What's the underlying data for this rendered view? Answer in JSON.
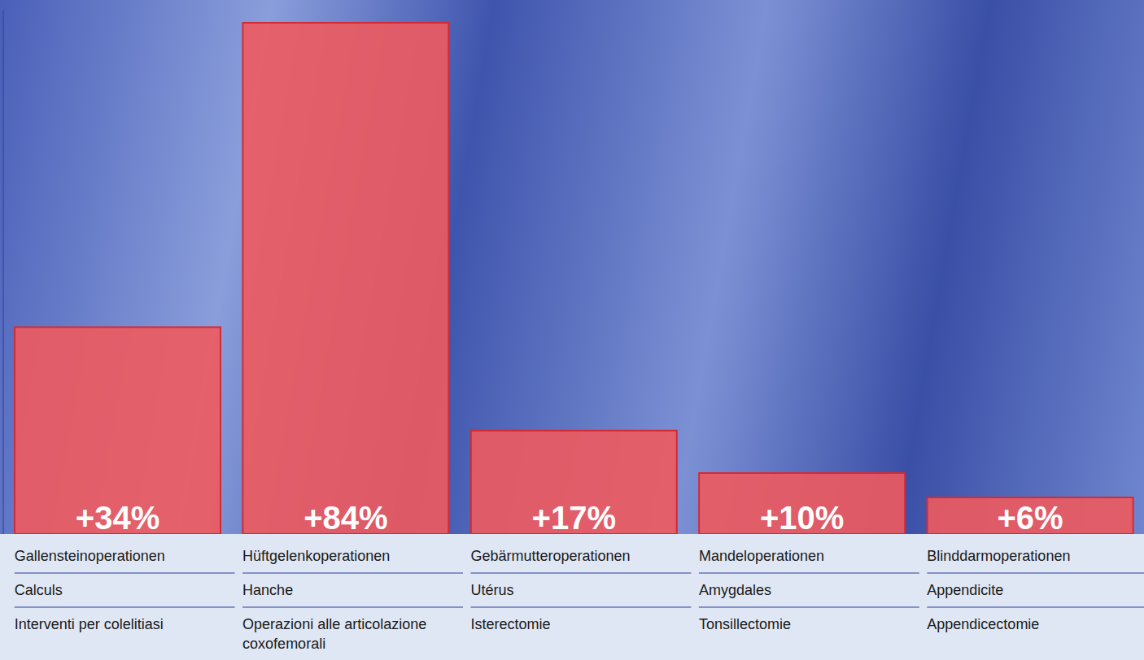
{
  "chart_data": {
    "type": "bar",
    "categories": [
      [
        "Gallensteinoperationen",
        "Calculs",
        "Interventi per colelitiasi"
      ],
      [
        "Hüftgelenkoperationen",
        "Hanche",
        "Operazioni alle articolazione coxofemorali"
      ],
      [
        "Gebärmutteroperationen",
        "Utérus",
        "Isterectomie"
      ],
      [
        "Mandeloperationen",
        "Amygdales",
        "Tonsillectomie"
      ],
      [
        "Blinddarmoperationen",
        "Appendicite",
        "Appendicectomie"
      ]
    ],
    "values": [
      34,
      84,
      17,
      10,
      6
    ],
    "value_labels": [
      "+34%",
      "+84%",
      "+17%",
      "+10%",
      "+6%"
    ],
    "data_labels": true,
    "color": "#ee5a5e",
    "ylim": [
      0,
      86
    ],
    "tick_labels": false,
    "grid": false
  }
}
